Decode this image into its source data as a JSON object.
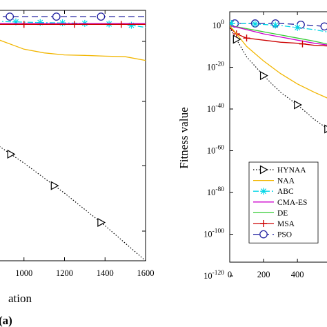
{
  "chart_data": [
    {
      "id": "left",
      "type": "line",
      "panel_label": "(a)",
      "xlabel": "ation",
      "xticklabels": [
        "00",
        "1000",
        "1200",
        "1400",
        "1600"
      ],
      "xlim": [
        800,
        1600
      ],
      "yrange_frac": [
        0,
        1
      ],
      "series": [
        {
          "key": "PSO",
          "color": "#1f1f9f",
          "style": "dash",
          "marker": "circle",
          "x": [
            800,
            930,
            1160,
            1380,
            1600
          ],
          "y": [
            0.975,
            0.975,
            0.975,
            0.975,
            0.975
          ],
          "markers_x": [
            930,
            1160,
            1380
          ]
        },
        {
          "key": "ABC",
          "color": "#00d5e6",
          "style": "dashdot",
          "marker": "star",
          "x": [
            800,
            900,
            1000,
            1100,
            1200,
            1300,
            1400,
            1500,
            1600
          ],
          "y": [
            0.96,
            0.955,
            0.953,
            0.951,
            0.95,
            0.948,
            0.946,
            0.944,
            0.932
          ],
          "markers_x": [
            800,
            960,
            1080,
            1190,
            1300,
            1420,
            1530
          ]
        },
        {
          "key": "CMA-ES",
          "color": "#cc00cc",
          "style": "solid",
          "marker": "none",
          "x": [
            800,
            1600
          ],
          "y": [
            0.947,
            0.947
          ]
        },
        {
          "key": "MSA",
          "color": "#cc0000",
          "style": "solid",
          "marker": "plus",
          "x": [
            800,
            1600
          ],
          "y": [
            0.944,
            0.944
          ],
          "markers_x": [
            1000,
            1250,
            1480
          ]
        },
        {
          "key": "NAA",
          "color": "#f2b600",
          "style": "solid",
          "marker": "none",
          "x": [
            800,
            850,
            900,
            950,
            1000,
            1100,
            1200,
            1300,
            1400,
            1500,
            1600
          ],
          "y": [
            0.9,
            0.89,
            0.875,
            0.86,
            0.845,
            0.83,
            0.822,
            0.82,
            0.817,
            0.815,
            0.8
          ]
        },
        {
          "key": "HYNAA",
          "color": "#000000",
          "style": "dot",
          "marker": "triangle-right",
          "x": [
            800,
            1000,
            1200,
            1400,
            1600
          ],
          "y": [
            0.5,
            0.39,
            0.27,
            0.14,
            0.0
          ],
          "markers_x": [
            935,
            1150,
            1380
          ]
        }
      ]
    },
    {
      "id": "right",
      "type": "line",
      "ylabel": "Fitness value",
      "yscale": "log",
      "ylim": [
        -120,
        0
      ],
      "yticks": [
        0,
        -20,
        -40,
        -60,
        -80,
        -100,
        -120
      ],
      "ytick_base": "10",
      "ytick_exps": [
        "0",
        "-20",
        "-40",
        "-60",
        "-80",
        "-100",
        "-120"
      ],
      "xlim": [
        0,
        640
      ],
      "xticks": [
        0,
        200,
        400
      ],
      "xticklabels": [
        "0",
        "200",
        "400"
      ],
      "legend": {
        "placement": "lower-left",
        "entries": [
          "HYNAA",
          "NAA",
          "ABC",
          "CMA-ES",
          "DE",
          "MSA",
          "PSO"
        ]
      },
      "series": [
        {
          "key": "PSO",
          "label": "PSO",
          "color": "#1f1f9f",
          "style": "dash",
          "marker": "circle",
          "x": [
            0,
            100,
            200,
            300,
            400,
            500,
            640
          ],
          "y": [
            1,
            1,
            1,
            1,
            0.5,
            0,
            -1
          ],
          "markers_x": [
            30,
            150,
            270,
            420,
            560
          ]
        },
        {
          "key": "ABC",
          "label": "ABC",
          "color": "#00d5e6",
          "style": "dashdot",
          "marker": "star",
          "x": [
            0,
            100,
            200,
            300,
            400,
            500,
            640
          ],
          "y": [
            1,
            1,
            0.5,
            0,
            -1,
            -2,
            -4
          ],
          "markers_x": [
            10,
            150,
            270,
            400
          ]
        },
        {
          "key": "DE",
          "label": "DE",
          "color": "#33cc33",
          "style": "solid",
          "marker": "none",
          "x": [
            0,
            100,
            200,
            300,
            400,
            500,
            640
          ],
          "y": [
            0,
            -1.5,
            -3,
            -4.5,
            -6,
            -7.5,
            -10
          ]
        },
        {
          "key": "CMA-ES",
          "label": "CMA-ES",
          "color": "#cc00cc",
          "style": "solid",
          "marker": "none",
          "x": [
            0,
            100,
            200,
            300,
            400,
            500,
            640
          ],
          "y": [
            0,
            -2,
            -4,
            -5.5,
            -7,
            -8.5,
            -10
          ]
        },
        {
          "key": "MSA",
          "label": "MSA",
          "color": "#cc0000",
          "style": "solid",
          "marker": "plus",
          "x": [
            0,
            40,
            100,
            200,
            300,
            400,
            500,
            640
          ],
          "y": [
            -1,
            -4,
            -6,
            -7,
            -8,
            -8.5,
            -9.5,
            -10
          ],
          "markers_x": [
            40,
            100,
            430
          ]
        },
        {
          "key": "NAA",
          "label": "NAA",
          "color": "#f2b600",
          "style": "solid",
          "marker": "none",
          "x": [
            0,
            50,
            100,
            200,
            300,
            400,
            500,
            640
          ],
          "y": [
            0,
            -5,
            -10,
            -17,
            -23,
            -28,
            -32,
            -37
          ]
        },
        {
          "key": "HYNAA",
          "label": "HYNAA",
          "color": "#000000",
          "style": "dot",
          "marker": "triangle-right",
          "x": [
            0,
            100,
            200,
            300,
            400,
            500,
            640
          ],
          "y": [
            -1,
            -15,
            -24,
            -32,
            -38,
            -45,
            -53
          ],
          "markers_x": [
            40,
            200,
            400,
            580
          ]
        }
      ]
    }
  ]
}
